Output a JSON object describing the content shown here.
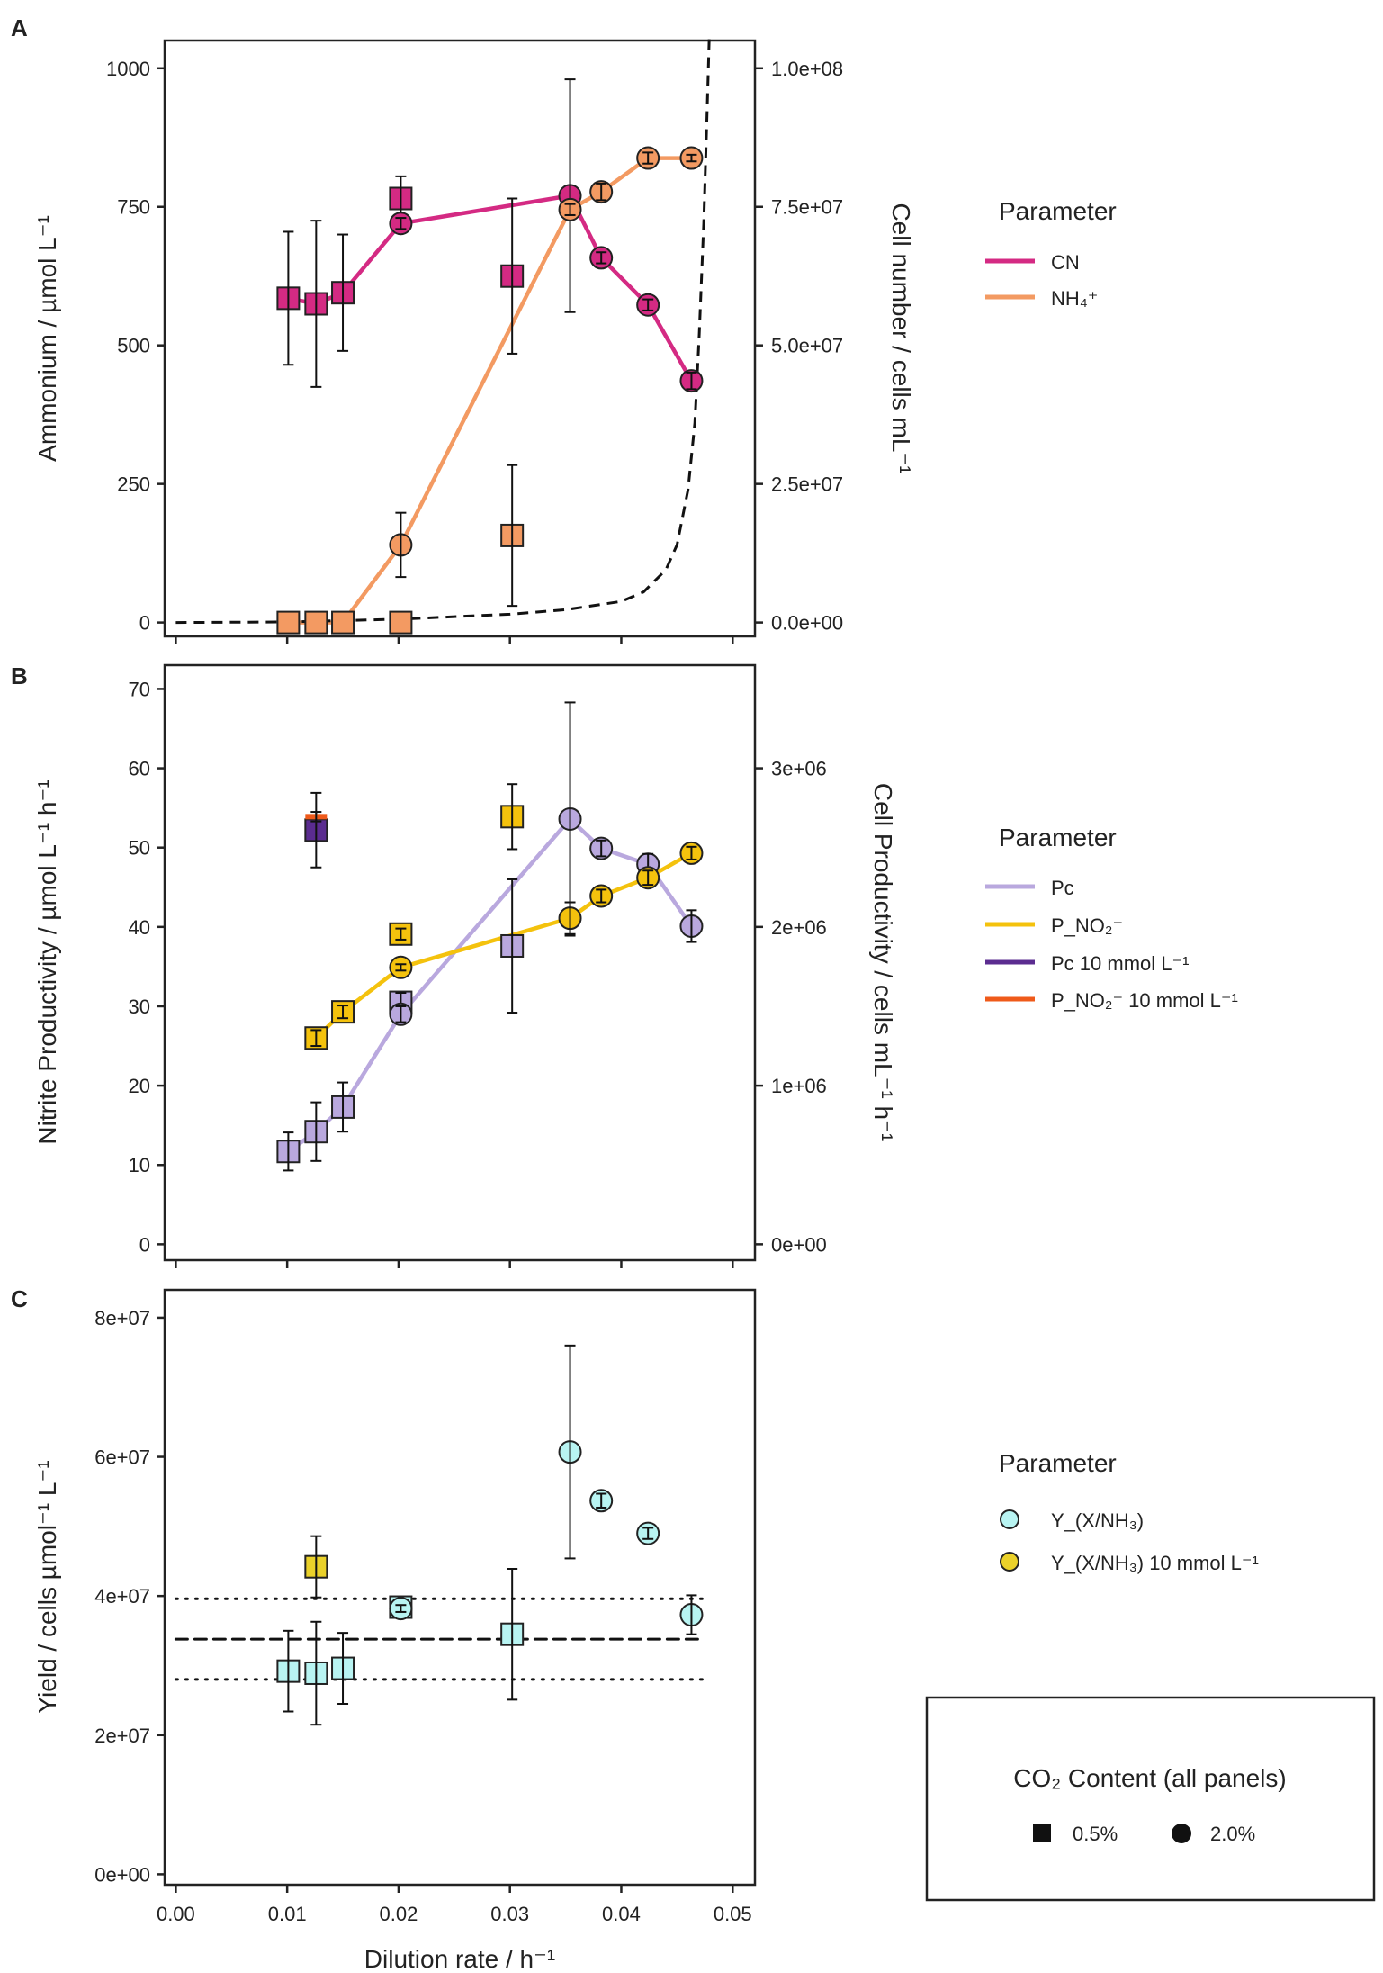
{
  "colors": {
    "cn": "#d42a83",
    "nh4": "#f39a62",
    "pc": "#b9a8de",
    "pno2": "#f4c20d",
    "pc10": "#5b2c90",
    "pno2_10": "#ef5a1a",
    "yield": "#b8f4f2",
    "yield10": "#ead12a"
  },
  "x_axis": {
    "label": "Dilution rate / h⁻¹",
    "ticks": [
      "0.00",
      "0.01",
      "0.02",
      "0.03",
      "0.04",
      "0.05"
    ],
    "range": [
      -0.001,
      0.052
    ]
  },
  "panel_a": {
    "letter": "A",
    "ylabel": "Ammonium / µmol L⁻¹",
    "ylabel_right": "Cell number / cells mL⁻¹",
    "legend": {
      "title": "Parameter",
      "items": [
        "CN",
        "NH₄⁺"
      ]
    }
  },
  "panel_b": {
    "letter": "B",
    "ylabel": "Nitrite Productivity / µmol L⁻¹ h⁻¹",
    "ylabel_right": "Cell Productivity / cells mL⁻¹ h⁻¹",
    "legend": {
      "title": "Parameter",
      "items": [
        "Pc",
        "P_NO₂⁻",
        "Pc 10 mmol L⁻¹",
        "P_NO₂⁻ 10 mmol L⁻¹"
      ]
    }
  },
  "panel_c": {
    "letter": "C",
    "ylabel": "Yield / cells µmol⁻¹ L⁻¹",
    "legend": {
      "title": "Parameter",
      "items": [
        "Y_(X/NH₃)",
        "Y_(X/NH₃) 10 mmol L⁻¹"
      ]
    }
  },
  "co2_legend": {
    "title": "CO₂ Content (all panels)",
    "items": [
      "0.5%",
      "2.0%"
    ]
  },
  "chart_data": [
    {
      "panel": "A",
      "type": "scatter",
      "ylim": [
        -25,
        1050
      ],
      "yticks": [
        0,
        250,
        500,
        750,
        1000
      ],
      "y2lim": [
        -2500000,
        105000000
      ],
      "y2ticks": [
        0,
        25000000,
        50000000,
        75000000,
        100000000
      ],
      "y2ticklabels": [
        "0.0e+00",
        "2.5e+07",
        "5.0e+07",
        "7.5e+07",
        "1.0e+08"
      ],
      "series": [
        {
          "name": "CN",
          "axis": "right",
          "color_key": "cn",
          "line": true,
          "points": [
            {
              "x": 0.0101,
              "y": 58500000,
              "err": 12000000,
              "shape": "square"
            },
            {
              "x": 0.0126,
              "y": 57500000,
              "err": 15000000,
              "shape": "square"
            },
            {
              "x": 0.015,
              "y": 59500000,
              "err": 10500000,
              "shape": "square"
            },
            {
              "x": 0.0202,
              "y": 76500000,
              "err": 4000000,
              "shape": "square"
            },
            {
              "x": 0.0202,
              "y": 72000000,
              "err": 1000000,
              "shape": "circle"
            },
            {
              "x": 0.0302,
              "y": 62500000,
              "err": 14000000,
              "shape": "square"
            },
            {
              "x": 0.0354,
              "y": 77000000,
              "err": 21000000,
              "shape": "circle"
            },
            {
              "x": 0.0382,
              "y": 65800000,
              "err": 1000000,
              "shape": "circle"
            },
            {
              "x": 0.0424,
              "y": 57300000,
              "err": 1000000,
              "shape": "circle"
            },
            {
              "x": 0.0463,
              "y": 43600000,
              "err": 1500000,
              "shape": "circle"
            }
          ],
          "line_points": [
            [
              0.0101,
              58500000
            ],
            [
              0.0126,
              57500000
            ],
            [
              0.015,
              59500000
            ],
            [
              0.0202,
              72000000
            ],
            [
              0.0354,
              77000000
            ],
            [
              0.0382,
              65800000
            ],
            [
              0.0424,
              57300000
            ],
            [
              0.0463,
              43600000
            ]
          ]
        },
        {
          "name": "NH₄⁺",
          "axis": "left",
          "color_key": "nh4",
          "line": true,
          "points": [
            {
              "x": 0.0101,
              "y": 0,
              "err": 0,
              "shape": "square"
            },
            {
              "x": 0.0126,
              "y": 0,
              "err": 0,
              "shape": "square"
            },
            {
              "x": 0.015,
              "y": 0,
              "err": 0,
              "shape": "square"
            },
            {
              "x": 0.0202,
              "y": 0,
              "err": 0,
              "shape": "square"
            },
            {
              "x": 0.0202,
              "y": 140,
              "err": 58,
              "shape": "circle"
            },
            {
              "x": 0.0302,
              "y": 157,
              "err": 127,
              "shape": "square"
            },
            {
              "x": 0.0354,
              "y": 745,
              "err": 10,
              "shape": "circle"
            },
            {
              "x": 0.0382,
              "y": 777,
              "err": 15,
              "shape": "circle"
            },
            {
              "x": 0.0424,
              "y": 838,
              "err": 10,
              "shape": "circle"
            },
            {
              "x": 0.0463,
              "y": 838,
              "err": 6,
              "shape": "circle"
            }
          ],
          "line_points": [
            [
              0.0101,
              0
            ],
            [
              0.0126,
              0
            ],
            [
              0.015,
              0
            ],
            [
              0.0202,
              140
            ],
            [
              0.0354,
              745
            ],
            [
              0.0382,
              777
            ],
            [
              0.0424,
              838
            ],
            [
              0.0463,
              838
            ]
          ]
        },
        {
          "name": "model",
          "axis": "right",
          "style": "dashed",
          "line_points": [
            [
              0.0,
              0
            ],
            [
              0.01,
              100000
            ],
            [
              0.02,
              600000
            ],
            [
              0.03,
              1500000
            ],
            [
              0.035,
              2300000
            ],
            [
              0.04,
              3800000
            ],
            [
              0.042,
              5500000
            ],
            [
              0.044,
              9500000
            ],
            [
              0.045,
              14000000
            ],
            [
              0.046,
              24000000
            ],
            [
              0.0466,
              36000000
            ],
            [
              0.047,
              52000000
            ],
            [
              0.0474,
              72000000
            ],
            [
              0.0477,
              92000000
            ],
            [
              0.0479,
              106000000
            ]
          ]
        }
      ]
    },
    {
      "panel": "B",
      "type": "scatter",
      "ylim": [
        -2,
        73
      ],
      "yticks": [
        0,
        10,
        20,
        30,
        40,
        50,
        60,
        70
      ],
      "y2lim": [
        -100000,
        3650000
      ],
      "y2ticks": [
        0,
        1000000,
        2000000,
        3000000
      ],
      "y2ticklabels": [
        "0e+00",
        "1e+06",
        "2e+06",
        "3e+06"
      ],
      "series": [
        {
          "name": "Pc",
          "axis": "left",
          "color_key": "pc",
          "line": true,
          "points": [
            {
              "x": 0.0101,
              "y": 11.7,
              "err": 2.4,
              "shape": "square"
            },
            {
              "x": 0.0126,
              "y": 14.2,
              "err": 3.7,
              "shape": "square"
            },
            {
              "x": 0.015,
              "y": 17.3,
              "err": 3.1,
              "shape": "square"
            },
            {
              "x": 0.0202,
              "y": 30.5,
              "err": 1.2,
              "shape": "square"
            },
            {
              "x": 0.0202,
              "y": 29.0,
              "err": 1.0,
              "shape": "circle"
            },
            {
              "x": 0.0302,
              "y": 37.6,
              "err": 8.4,
              "shape": "square"
            },
            {
              "x": 0.0354,
              "y": 53.6,
              "err": 14.7,
              "shape": "circle"
            },
            {
              "x": 0.0382,
              "y": 49.9,
              "err": 1.0,
              "shape": "circle"
            },
            {
              "x": 0.0424,
              "y": 47.9,
              "err": 1.3,
              "shape": "circle"
            },
            {
              "x": 0.0463,
              "y": 40.1,
              "err": 2.0,
              "shape": "circle"
            }
          ],
          "line_points": [
            [
              0.0101,
              11.7
            ],
            [
              0.0126,
              14.2
            ],
            [
              0.015,
              17.3
            ],
            [
              0.0202,
              29.0
            ],
            [
              0.0354,
              53.6
            ],
            [
              0.0382,
              49.9
            ],
            [
              0.0424,
              47.9
            ],
            [
              0.0463,
              40.1
            ]
          ]
        },
        {
          "name": "P_NO₂⁻",
          "axis": "left",
          "color_key": "pno2",
          "line": true,
          "points": [
            {
              "x": 0.0126,
              "y": 26.0,
              "err": 1.0,
              "shape": "square"
            },
            {
              "x": 0.015,
              "y": 29.3,
              "err": 0.8,
              "shape": "square"
            },
            {
              "x": 0.0202,
              "y": 39.1,
              "err": 0.7,
              "shape": "square"
            },
            {
              "x": 0.0202,
              "y": 34.9,
              "err": 0.4,
              "shape": "circle"
            },
            {
              "x": 0.0302,
              "y": 53.9,
              "err": 4.1,
              "shape": "square"
            },
            {
              "x": 0.0354,
              "y": 41.1,
              "err": 2.0,
              "shape": "circle"
            },
            {
              "x": 0.0382,
              "y": 43.9,
              "err": 0.8,
              "shape": "circle"
            },
            {
              "x": 0.0424,
              "y": 46.2,
              "err": 0.9,
              "shape": "circle"
            },
            {
              "x": 0.0463,
              "y": 49.3,
              "err": 0.8,
              "shape": "circle"
            }
          ],
          "line_points": [
            [
              0.0126,
              26.0
            ],
            [
              0.015,
              29.3
            ],
            [
              0.0202,
              34.9
            ],
            [
              0.0354,
              41.1
            ],
            [
              0.0382,
              43.9
            ],
            [
              0.0424,
              46.2
            ],
            [
              0.0463,
              49.3
            ]
          ]
        },
        {
          "name": "Pc 10 mmol L⁻¹",
          "axis": "left",
          "color_key": "pc10",
          "line": false,
          "points": [
            {
              "x": 0.0126,
              "y": 52.2,
              "err": 4.7,
              "shape": "square"
            }
          ]
        },
        {
          "name": "P_NO₂⁻ 10 mmol L⁻¹",
          "axis": "left",
          "color_key": "pno2_10",
          "line": false,
          "points": [
            {
              "x": 0.0126,
              "y": 53.9,
              "err": 0.6,
              "shape": "bar"
            }
          ]
        }
      ]
    },
    {
      "panel": "C",
      "type": "scatter",
      "ylim": [
        -1500000,
        84000000
      ],
      "yticks": [
        0,
        20000000,
        40000000,
        60000000,
        80000000
      ],
      "yticklabels": [
        "0e+00",
        "2e+07",
        "4e+07",
        "6e+07",
        "8e+07"
      ],
      "hlines": [
        {
          "y": 33800000,
          "style": "dashed"
        },
        {
          "y": 39600000,
          "style": "dotted"
        },
        {
          "y": 28000000,
          "style": "dotted"
        }
      ],
      "series": [
        {
          "name": "Y_(X/NH₃)",
          "axis": "left",
          "color_key": "yield",
          "line": false,
          "points": [
            {
              "x": 0.0101,
              "y": 29200000,
              "err": 5800000,
              "shape": "square"
            },
            {
              "x": 0.0126,
              "y": 28900000,
              "err": 7400000,
              "shape": "square"
            },
            {
              "x": 0.015,
              "y": 29600000,
              "err": 5100000,
              "shape": "square"
            },
            {
              "x": 0.0202,
              "y": 38400000,
              "err": 1000000,
              "shape": "square"
            },
            {
              "x": 0.0202,
              "y": 38200000,
              "err": 500000,
              "shape": "circle"
            },
            {
              "x": 0.0302,
              "y": 34500000,
              "err": 9400000,
              "shape": "square"
            },
            {
              "x": 0.0354,
              "y": 60700000,
              "err": 15300000,
              "shape": "circle"
            },
            {
              "x": 0.0382,
              "y": 53700000,
              "err": 1000000,
              "shape": "circle"
            },
            {
              "x": 0.0424,
              "y": 49000000,
              "err": 800000,
              "shape": "circle"
            },
            {
              "x": 0.0463,
              "y": 37300000,
              "err": 2800000,
              "shape": "circle"
            }
          ]
        },
        {
          "name": "Y_(X/NH₃) 10 mmol L⁻¹",
          "axis": "left",
          "color_key": "yield10",
          "line": false,
          "points": [
            {
              "x": 0.0126,
              "y": 44200000,
              "err": 4400000,
              "shape": "square"
            }
          ]
        }
      ]
    }
  ]
}
